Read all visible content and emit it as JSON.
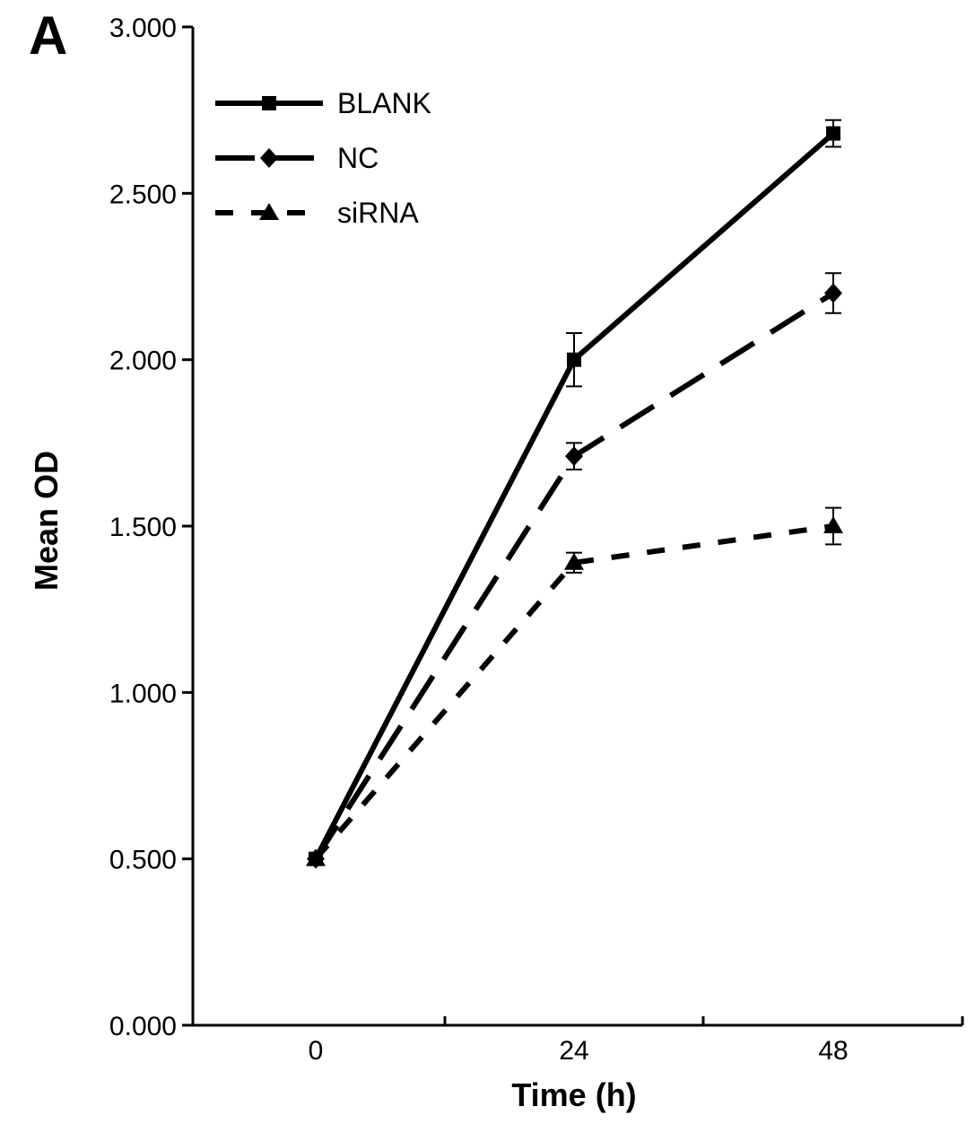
{
  "panel_label": "A",
  "chart_data": {
    "type": "line",
    "title": "",
    "xlabel": "Time (h)",
    "ylabel": "Mean OD",
    "x": [
      0,
      24,
      48
    ],
    "x_tick_labels": [
      "0",
      "24",
      "48"
    ],
    "y_tick_labels": [
      "0.000",
      "0.500",
      "1.000",
      "1.500",
      "2.000",
      "2.500",
      "3.000"
    ],
    "ylim": [
      0,
      3
    ],
    "grid": false,
    "legend_position": "top-left",
    "series": [
      {
        "name": "BLANK",
        "values": [
          0.5,
          2.0,
          2.68
        ],
        "errors": [
          0,
          0.08,
          0.04
        ],
        "marker": "square",
        "line_style": "solid"
      },
      {
        "name": "NC",
        "values": [
          0.5,
          1.71,
          2.2
        ],
        "errors": [
          0,
          0.04,
          0.06
        ],
        "marker": "diamond",
        "line_style": "long-dash"
      },
      {
        "name": "siRNA",
        "values": [
          0.5,
          1.39,
          1.5
        ],
        "errors": [
          0,
          0.03,
          0.055
        ],
        "marker": "triangle",
        "line_style": "short-dash"
      }
    ]
  }
}
